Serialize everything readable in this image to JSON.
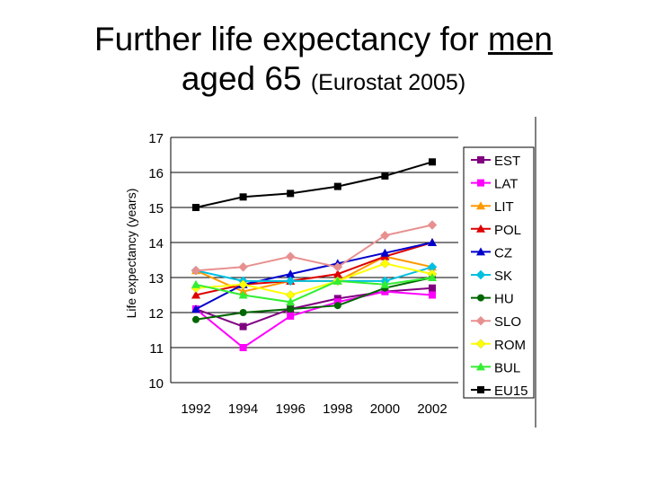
{
  "title": {
    "line1_prefix": "Further life expectancy for ",
    "line1_emph": "men",
    "line2_main": "aged 65 ",
    "line2_source": "(Eurostat 2005)"
  },
  "chart_data": {
    "type": "line",
    "ylabel": "Life expectancy (years)",
    "xlabel": "",
    "x": [
      1992,
      1994,
      1996,
      1998,
      2000,
      2002
    ],
    "xtick_labels": [
      "1992",
      "1994",
      "1996",
      "1998",
      "2000",
      "2002"
    ],
    "ylim": [
      10,
      17
    ],
    "yticks": [
      10,
      11,
      12,
      13,
      14,
      15,
      16,
      17
    ],
    "grid": "horizontal",
    "legend_position": "right",
    "series": [
      {
        "name": "EST",
        "color": "#800080",
        "marker": "square",
        "values": [
          12.1,
          11.6,
          12.1,
          12.4,
          12.6,
          12.7
        ]
      },
      {
        "name": "LAT",
        "color": "#ff00ff",
        "marker": "square",
        "values": [
          12.1,
          11.0,
          11.9,
          12.3,
          12.6,
          12.5
        ]
      },
      {
        "name": "LIT",
        "color": "#ff9900",
        "marker": "triangle",
        "values": [
          13.2,
          12.6,
          12.9,
          12.9,
          13.6,
          13.3
        ]
      },
      {
        "name": "POL",
        "color": "#dd0000",
        "marker": "triangle",
        "values": [
          12.5,
          12.8,
          12.9,
          13.1,
          13.6,
          14.0
        ]
      },
      {
        "name": "CZ",
        "color": "#0000cc",
        "marker": "triangle",
        "values": [
          12.1,
          12.8,
          13.1,
          13.4,
          13.7,
          14.0
        ]
      },
      {
        "name": "SK",
        "color": "#00c0e0",
        "marker": "diamond",
        "values": [
          13.2,
          12.9,
          12.9,
          12.9,
          12.9,
          13.3
        ]
      },
      {
        "name": "HU",
        "color": "#006600",
        "marker": "circle",
        "values": [
          11.8,
          12.0,
          12.1,
          12.2,
          12.7,
          13.0
        ]
      },
      {
        "name": "SLO",
        "color": "#e89090",
        "marker": "diamond",
        "values": [
          13.2,
          13.3,
          13.6,
          13.3,
          14.2,
          14.5
        ]
      },
      {
        "name": "ROM",
        "color": "#ffff00",
        "marker": "diamond",
        "values": [
          12.7,
          12.8,
          12.5,
          12.9,
          13.4,
          13.1
        ]
      },
      {
        "name": "BUL",
        "color": "#33ee33",
        "marker": "triangle",
        "values": [
          12.8,
          12.5,
          12.3,
          12.9,
          12.8,
          13.0
        ]
      },
      {
        "name": "EU15",
        "color": "#000000",
        "marker": "square",
        "values": [
          15.0,
          15.3,
          15.4,
          15.6,
          15.9,
          16.3
        ]
      }
    ]
  }
}
